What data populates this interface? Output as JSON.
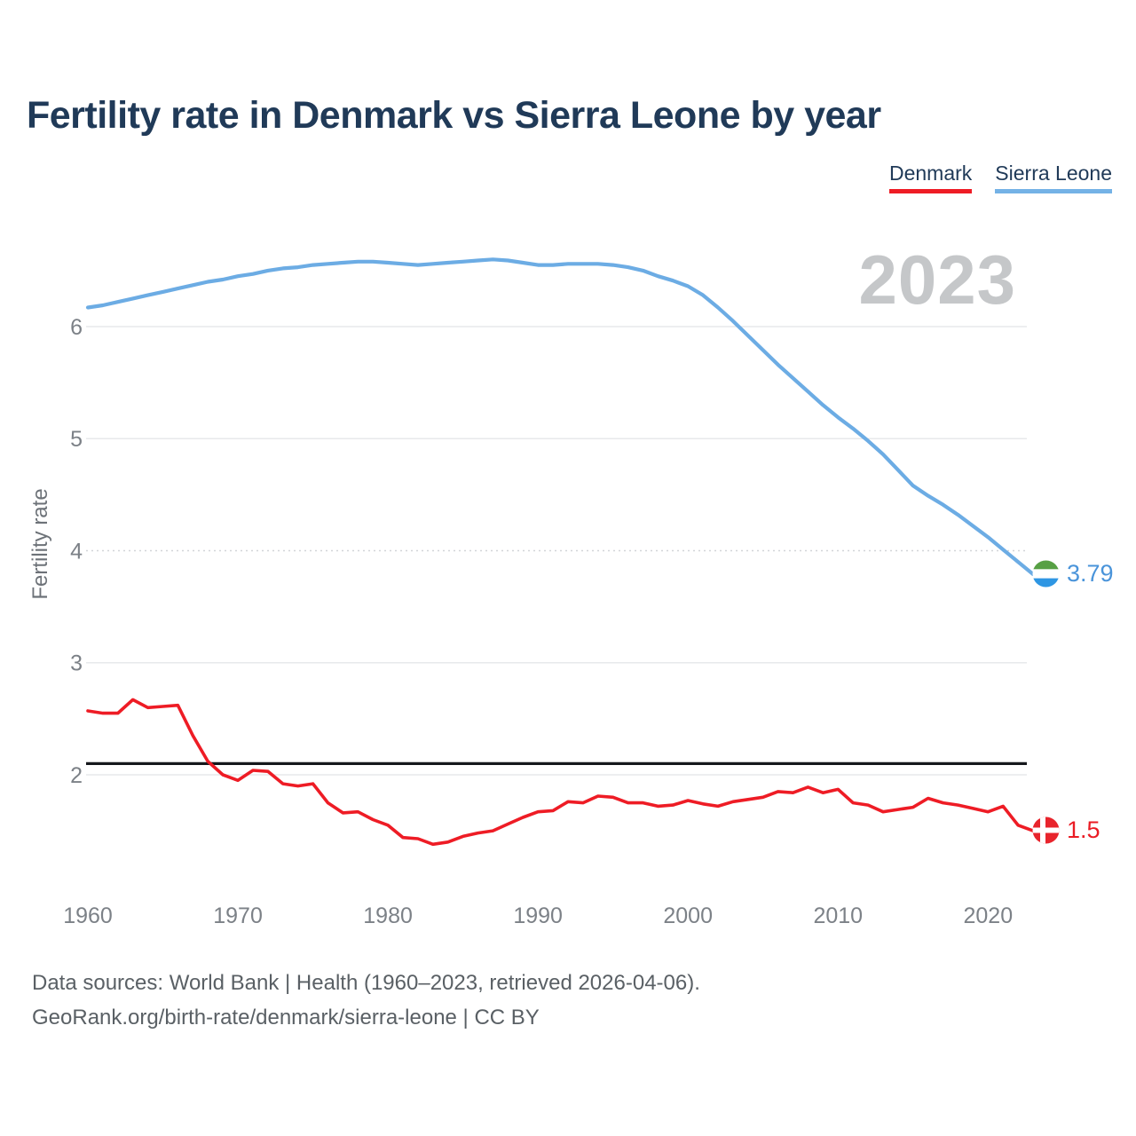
{
  "title": "Fertility rate in Denmark vs Sierra Leone by year",
  "legend": {
    "items": [
      {
        "label": "Denmark",
        "color": "#ee1c25"
      },
      {
        "label": "Sierra Leone",
        "color": "#74b2e6"
      }
    ]
  },
  "watermark": {
    "text": "2023"
  },
  "end_labels": {
    "sierra_leone": "3.79",
    "denmark": "1.5"
  },
  "footer": {
    "line1": "Data sources: World Bank | Health (1960–2023, retrieved 2026-04-06).",
    "line2": "GeoRank.org/birth-rate/denmark/sierra-leone | CC BY"
  },
  "chart_data": {
    "type": "line",
    "title": "Fertility rate in Denmark vs Sierra Leone by year",
    "xlabel": "",
    "ylabel": "Fertility rate",
    "xlim": [
      1960,
      2023
    ],
    "ylim": [
      1.2,
      6.9
    ],
    "grid": true,
    "legend_position": "top-right",
    "x_ticks": [
      1960,
      1970,
      1980,
      1990,
      2000,
      2010,
      2020
    ],
    "y_ticks": [
      2,
      3,
      4,
      5,
      6
    ],
    "dashed_y_gridline": 4,
    "reference_line": {
      "value": 2.1,
      "color": "#15181c"
    },
    "x": [
      1960,
      1961,
      1962,
      1963,
      1964,
      1965,
      1966,
      1967,
      1968,
      1969,
      1970,
      1971,
      1972,
      1973,
      1974,
      1975,
      1976,
      1977,
      1978,
      1979,
      1980,
      1981,
      1982,
      1983,
      1984,
      1985,
      1986,
      1987,
      1988,
      1989,
      1990,
      1991,
      1992,
      1993,
      1994,
      1995,
      1996,
      1997,
      1998,
      1999,
      2000,
      2001,
      2002,
      2003,
      2004,
      2005,
      2006,
      2007,
      2008,
      2009,
      2010,
      2011,
      2012,
      2013,
      2014,
      2015,
      2016,
      2017,
      2018,
      2019,
      2020,
      2021,
      2022,
      2023
    ],
    "series": [
      {
        "name": "Denmark",
        "color": "#ee1c25",
        "last_value": 1.5,
        "values": [
          2.57,
          2.55,
          2.55,
          2.67,
          2.6,
          2.61,
          2.62,
          2.35,
          2.12,
          2.0,
          1.95,
          2.04,
          2.03,
          1.92,
          1.9,
          1.92,
          1.75,
          1.66,
          1.67,
          1.6,
          1.55,
          1.44,
          1.43,
          1.38,
          1.4,
          1.45,
          1.48,
          1.5,
          1.56,
          1.62,
          1.67,
          1.68,
          1.76,
          1.75,
          1.81,
          1.8,
          1.75,
          1.75,
          1.72,
          1.73,
          1.77,
          1.74,
          1.72,
          1.76,
          1.78,
          1.8,
          1.85,
          1.84,
          1.89,
          1.84,
          1.87,
          1.75,
          1.73,
          1.67,
          1.69,
          1.71,
          1.79,
          1.75,
          1.73,
          1.7,
          1.67,
          1.72,
          1.55,
          1.5
        ]
      },
      {
        "name": "Sierra Leone",
        "color": "#6cace4",
        "last_value": 3.79,
        "values": [
          6.17,
          6.19,
          6.22,
          6.25,
          6.28,
          6.31,
          6.34,
          6.37,
          6.4,
          6.42,
          6.45,
          6.47,
          6.5,
          6.52,
          6.53,
          6.55,
          6.56,
          6.57,
          6.58,
          6.58,
          6.57,
          6.56,
          6.55,
          6.56,
          6.57,
          6.58,
          6.59,
          6.6,
          6.59,
          6.57,
          6.55,
          6.55,
          6.56,
          6.56,
          6.56,
          6.55,
          6.53,
          6.5,
          6.45,
          6.41,
          6.36,
          6.28,
          6.17,
          6.05,
          5.92,
          5.79,
          5.66,
          5.54,
          5.42,
          5.3,
          5.19,
          5.09,
          4.98,
          4.86,
          4.72,
          4.58,
          4.49,
          4.41,
          4.32,
          4.22,
          4.12,
          4.01,
          3.9,
          3.79
        ]
      }
    ]
  }
}
